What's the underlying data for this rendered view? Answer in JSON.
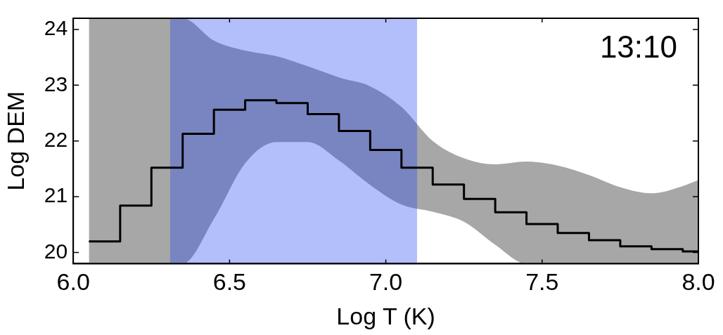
{
  "chart_data": {
    "type": "step",
    "xlabel": "Log T (K)",
    "ylabel": "Log DEM",
    "x": [
      6.05,
      6.15,
      6.25,
      6.35,
      6.45,
      6.55,
      6.65,
      6.75,
      6.85,
      6.95,
      7.05,
      7.15,
      7.25,
      7.35,
      7.45,
      7.55,
      7.65,
      7.75,
      7.85,
      7.95,
      8.0
    ],
    "series": [
      {
        "color": "#000000",
        "values": [
          20.2,
          20.84,
          21.52,
          22.13,
          22.56,
          22.73,
          22.68,
          22.48,
          22.18,
          21.84,
          21.52,
          21.22,
          20.96,
          20.72,
          20.51,
          20.35,
          20.22,
          20.11,
          20.06,
          20.02,
          20.02
        ],
        "lower": [
          19.8,
          19.8,
          19.8,
          19.8,
          20.6,
          21.6,
          21.98,
          21.98,
          21.65,
          21.21,
          20.86,
          20.73,
          20.55,
          20.14,
          19.8,
          19.8,
          19.8,
          19.8,
          19.8,
          19.8,
          19.8
        ],
        "upper": [
          24.2,
          24.2,
          24.2,
          24.2,
          23.8,
          23.62,
          23.52,
          23.34,
          23.14,
          22.98,
          22.61,
          22.0,
          21.69,
          21.58,
          21.63,
          21.56,
          21.39,
          21.17,
          21.06,
          21.19,
          21.3
        ]
      }
    ],
    "bands": [
      {
        "axis": "x",
        "from": 6.31,
        "to": 7.1,
        "color": "#b3bffb"
      }
    ],
    "annotations": [
      "13:10"
    ],
    "xlim": [
      6.0,
      8.0
    ],
    "xticks": [
      {
        "value": 6.0,
        "label": "6.0"
      },
      {
        "value": 6.5,
        "label": "6.5"
      },
      {
        "value": 7.0,
        "label": "7.0"
      },
      {
        "value": 7.5,
        "label": "7.5"
      },
      {
        "value": 8.0,
        "label": "8.0"
      }
    ],
    "ylim": [
      19.8,
      24.2
    ],
    "yticks": [
      20,
      21,
      22,
      23,
      24
    ],
    "grid": false,
    "legend": false
  }
}
